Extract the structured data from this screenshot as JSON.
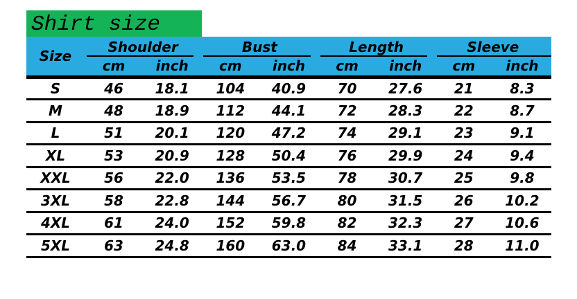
{
  "title": "Shirt size",
  "colors": {
    "title_bg": "#15B357",
    "header_bg": "#29ABE2",
    "line": "#000000",
    "page_bg": "#FFFFFF",
    "text": "#000000"
  },
  "table": {
    "size_label": "Size",
    "groups": [
      {
        "label": "Shoulder",
        "units": [
          "cm",
          "inch"
        ]
      },
      {
        "label": "Bust",
        "units": [
          "cm",
          "inch"
        ]
      },
      {
        "label": "Length",
        "units": [
          "cm",
          "inch"
        ]
      },
      {
        "label": "Sleeve",
        "units": [
          "cm",
          "inch"
        ]
      }
    ],
    "rows": [
      [
        "S",
        "46",
        "18.1",
        "104",
        "40.9",
        "70",
        "27.6",
        "21",
        "8.3"
      ],
      [
        "M",
        "48",
        "18.9",
        "112",
        "44.1",
        "72",
        "28.3",
        "22",
        "8.7"
      ],
      [
        "L",
        "51",
        "20.1",
        "120",
        "47.2",
        "74",
        "29.1",
        "23",
        "9.1"
      ],
      [
        "XL",
        "53",
        "20.9",
        "128",
        "50.4",
        "76",
        "29.9",
        "24",
        "9.4"
      ],
      [
        "XXL",
        "56",
        "22.0",
        "136",
        "53.5",
        "78",
        "30.7",
        "25",
        "9.8"
      ],
      [
        "3XL",
        "58",
        "22.8",
        "144",
        "56.7",
        "80",
        "31.5",
        "26",
        "10.2"
      ],
      [
        "4XL",
        "61",
        "24.0",
        "152",
        "59.8",
        "82",
        "32.3",
        "27",
        "10.6"
      ],
      [
        "5XL",
        "63",
        "24.8",
        "160",
        "63.0",
        "84",
        "33.1",
        "28",
        "11.0"
      ]
    ]
  },
  "chart_data": {
    "type": "table",
    "title": "Shirt size",
    "columns": [
      "Size",
      "Shoulder cm",
      "Shoulder inch",
      "Bust cm",
      "Bust inch",
      "Length cm",
      "Length inch",
      "Sleeve cm",
      "Sleeve inch"
    ],
    "rows": [
      [
        "S",
        46,
        18.1,
        104,
        40.9,
        70,
        27.6,
        21,
        8.3
      ],
      [
        "M",
        48,
        18.9,
        112,
        44.1,
        72,
        28.3,
        22,
        8.7
      ],
      [
        "L",
        51,
        20.1,
        120,
        47.2,
        74,
        29.1,
        23,
        9.1
      ],
      [
        "XL",
        53,
        20.9,
        128,
        50.4,
        76,
        29.9,
        24,
        9.4
      ],
      [
        "XXL",
        56,
        22.0,
        136,
        53.5,
        78,
        30.7,
        25,
        9.8
      ],
      [
        "3XL",
        58,
        22.8,
        144,
        56.7,
        80,
        31.5,
        26,
        10.2
      ],
      [
        "4XL",
        61,
        24.0,
        152,
        59.8,
        82,
        32.3,
        27,
        10.6
      ],
      [
        "5XL",
        63,
        24.8,
        160,
        63.0,
        84,
        33.1,
        28,
        11.0
      ]
    ]
  }
}
